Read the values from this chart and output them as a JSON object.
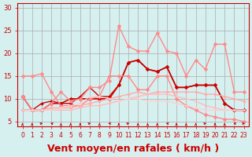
{
  "background_color": "#d6f0f0",
  "grid_color": "#aaaaaa",
  "xlabel": "Vent moyen/en rafales ( km/h )",
  "xlabel_color": "#cc0000",
  "xlabel_fontsize": 9,
  "ylabel_ticks": [
    5,
    10,
    15,
    20,
    25,
    30
  ],
  "xlim": [
    0,
    23
  ],
  "ylim": [
    4,
    31
  ],
  "x_ticks": [
    0,
    1,
    2,
    3,
    4,
    5,
    6,
    7,
    8,
    9,
    10,
    11,
    12,
    13,
    14,
    15,
    16,
    17,
    18,
    19,
    20,
    21,
    22,
    23
  ],
  "series": [
    {
      "x": [
        0,
        1,
        2,
        3,
        4,
        5,
        6,
        7,
        8,
        9,
        10,
        11,
        12,
        13,
        14,
        15,
        16,
        17,
        18,
        19,
        20,
        21,
        22,
        23
      ],
      "y": [
        10.5,
        7.5,
        7.5,
        9.0,
        9.0,
        10.0,
        10.0,
        10.0,
        10.0,
        10.0,
        13.0,
        18.0,
        18.5,
        16.5,
        16.0,
        17.0,
        12.5,
        12.5,
        13.0,
        13.0,
        13.0,
        9.0,
        7.5,
        7.5
      ],
      "color": "#cc0000",
      "lw": 1.2,
      "marker": "D",
      "markersize": 2.5
    },
    {
      "x": [
        0,
        1,
        2,
        3,
        4,
        5,
        6,
        7,
        8,
        9,
        10,
        11,
        12,
        13,
        14,
        15,
        16,
        17,
        18,
        19,
        20,
        21,
        22,
        23
      ],
      "y": [
        7.5,
        7.5,
        9.0,
        9.5,
        9.0,
        9.0,
        10.5,
        12.5,
        10.5,
        10.5,
        13.0,
        18.0,
        18.5,
        16.5,
        16.0,
        17.0,
        12.5,
        12.5,
        13.0,
        13.0,
        13.0,
        9.0,
        7.5,
        7.5
      ],
      "color": "#cc0000",
      "lw": 1.0,
      "marker": "D",
      "markersize": 2.0
    },
    {
      "x": [
        0,
        1,
        2,
        3,
        4,
        5,
        6,
        7,
        8,
        9,
        10,
        11,
        12,
        13,
        14,
        15,
        16,
        17,
        18,
        19,
        20,
        21,
        22,
        23
      ],
      "y": [
        15.0,
        15.0,
        15.5,
        11.5,
        8.5,
        8.5,
        8.5,
        10.0,
        10.5,
        15.0,
        15.0,
        15.0,
        12.0,
        12.0,
        15.0,
        15.0,
        10.0,
        8.5,
        7.5,
        6.5,
        6.0,
        5.5,
        5.5,
        5.0
      ],
      "color": "#ff8888",
      "lw": 1.0,
      "marker": "D",
      "markersize": 2.5
    },
    {
      "x": [
        0,
        1,
        2,
        3,
        4,
        5,
        6,
        7,
        8,
        9,
        10,
        11,
        12,
        13,
        14,
        15,
        16,
        17,
        18,
        19,
        20,
        21,
        22,
        23
      ],
      "y": [
        10.5,
        7.5,
        7.5,
        9.0,
        11.5,
        9.5,
        10.0,
        12.5,
        12.5,
        14.0,
        26.0,
        21.5,
        20.5,
        20.5,
        24.5,
        20.5,
        20.0,
        15.0,
        18.5,
        16.5,
        22.0,
        22.0,
        11.5,
        11.5
      ],
      "color": "#ff8888",
      "lw": 1.0,
      "marker": "D",
      "markersize": 2.5
    },
    {
      "x": [
        0,
        1,
        2,
        3,
        4,
        5,
        6,
        7,
        8,
        9,
        10,
        11,
        12,
        13,
        14,
        15,
        16,
        17,
        18,
        19,
        20,
        21,
        22,
        23
      ],
      "y": [
        7.5,
        7.5,
        7.5,
        8.0,
        8.0,
        8.0,
        8.5,
        9.0,
        9.5,
        10.0,
        10.5,
        11.0,
        11.5,
        11.0,
        11.5,
        11.5,
        11.5,
        11.5,
        11.5,
        11.0,
        11.0,
        10.5,
        10.0,
        9.5
      ],
      "color": "#ffaaaa",
      "lw": 1.0,
      "marker": "D",
      "markersize": 2.0
    },
    {
      "x": [
        0,
        1,
        2,
        3,
        4,
        5,
        6,
        7,
        8,
        9,
        10,
        11,
        12,
        13,
        14,
        15,
        16,
        17,
        18,
        19,
        20,
        21,
        22,
        23
      ],
      "y": [
        7.5,
        7.5,
        7.5,
        7.5,
        7.5,
        7.5,
        8.0,
        8.5,
        8.5,
        9.0,
        9.5,
        10.0,
        10.5,
        11.0,
        11.0,
        11.0,
        10.5,
        10.0,
        9.5,
        8.5,
        8.0,
        7.5,
        7.5,
        7.5
      ],
      "color": "#ffbbbb",
      "lw": 1.0,
      "marker": "D",
      "markersize": 1.5
    },
    {
      "x": [
        0,
        1,
        2,
        3,
        4,
        5,
        6,
        7,
        8,
        9,
        10,
        11,
        12,
        13,
        14,
        15,
        16,
        17,
        18,
        19,
        20,
        21,
        22,
        23
      ],
      "y": [
        7.5,
        7.5,
        7.5,
        7.5,
        8.0,
        8.5,
        9.0,
        10.5,
        10.5,
        10.0,
        9.5,
        10.0,
        10.0,
        9.5,
        9.5,
        9.5,
        9.0,
        8.5,
        8.0,
        7.5,
        7.5,
        7.5,
        7.5,
        7.5
      ],
      "color": "#ffcccc",
      "lw": 0.8,
      "marker": "D",
      "markersize": 1.5
    }
  ],
  "arrow_color": "#cc0000",
  "title": ""
}
